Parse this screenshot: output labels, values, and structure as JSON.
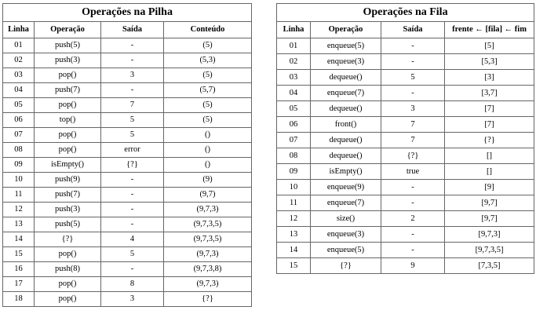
{
  "colors": {
    "background": "#ffffff",
    "border": "#666666",
    "text": "#000000"
  },
  "stack_table": {
    "title": "Operações na Pilha",
    "headers": [
      "Linha",
      "Operação",
      "Saída",
      "Conteúdo"
    ],
    "rows": [
      [
        "01",
        "push(5)",
        "-",
        "(5)"
      ],
      [
        "02",
        "push(3)",
        "-",
        "(5,3)"
      ],
      [
        "03",
        "pop()",
        "3",
        "(5)"
      ],
      [
        "04",
        "push(7)",
        "-",
        "(5,7)"
      ],
      [
        "05",
        "pop()",
        "7",
        "(5)"
      ],
      [
        "06",
        "top()",
        "5",
        "(5)"
      ],
      [
        "07",
        "pop()",
        "5",
        "()"
      ],
      [
        "08",
        "pop()",
        "error",
        "()"
      ],
      [
        "09",
        "isEmpty()",
        "{?}",
        "()"
      ],
      [
        "10",
        "push(9)",
        "-",
        "(9)"
      ],
      [
        "11",
        "push(7)",
        "-",
        "(9,7)"
      ],
      [
        "12",
        "push(3)",
        "-",
        "(9,7,3)"
      ],
      [
        "13",
        "push(5)",
        "-",
        "(9,7,3,5)"
      ],
      [
        "14",
        "{?}",
        "4",
        "(9,7,3,5)"
      ],
      [
        "15",
        "pop()",
        "5",
        "(9,7,3)"
      ],
      [
        "16",
        "push(8)",
        "-",
        "(9,7,3,8)"
      ],
      [
        "17",
        "pop()",
        "8",
        "(9,7,3)"
      ],
      [
        "18",
        "pop()",
        "3",
        "{?}"
      ]
    ]
  },
  "queue_table": {
    "title": "Operações na Fila",
    "headers": [
      "Linha",
      "Operação",
      "Saída",
      "frente ← [fila] ← fim"
    ],
    "rows": [
      [
        "01",
        "enqueue(5)",
        "-",
        "[5]"
      ],
      [
        "02",
        "enqueue(3)",
        "-",
        "[5,3]"
      ],
      [
        "03",
        "dequeue()",
        "5",
        "[3]"
      ],
      [
        "04",
        "enqueue(7)",
        "-",
        "[3,7]"
      ],
      [
        "05",
        "dequeue()",
        "3",
        "[7]"
      ],
      [
        "06",
        "front()",
        "7",
        "[7]"
      ],
      [
        "07",
        "dequeue()",
        "7",
        "{?}"
      ],
      [
        "08",
        "dequeue()",
        "{?}",
        "[]"
      ],
      [
        "09",
        "isEmpty()",
        "true",
        "[]"
      ],
      [
        "10",
        "enqueue(9)",
        "-",
        "[9]"
      ],
      [
        "11",
        "enqueue(7)",
        "-",
        "[9,7]"
      ],
      [
        "12",
        "size()",
        "2",
        "[9,7]"
      ],
      [
        "13",
        "enqueue(3)",
        "-",
        "[9,7,3]"
      ],
      [
        "14",
        "enqueue(5)",
        "-",
        "[9,7,3,5]"
      ],
      [
        "15",
        "{?}",
        "9",
        "[7,3,5]"
      ]
    ]
  }
}
